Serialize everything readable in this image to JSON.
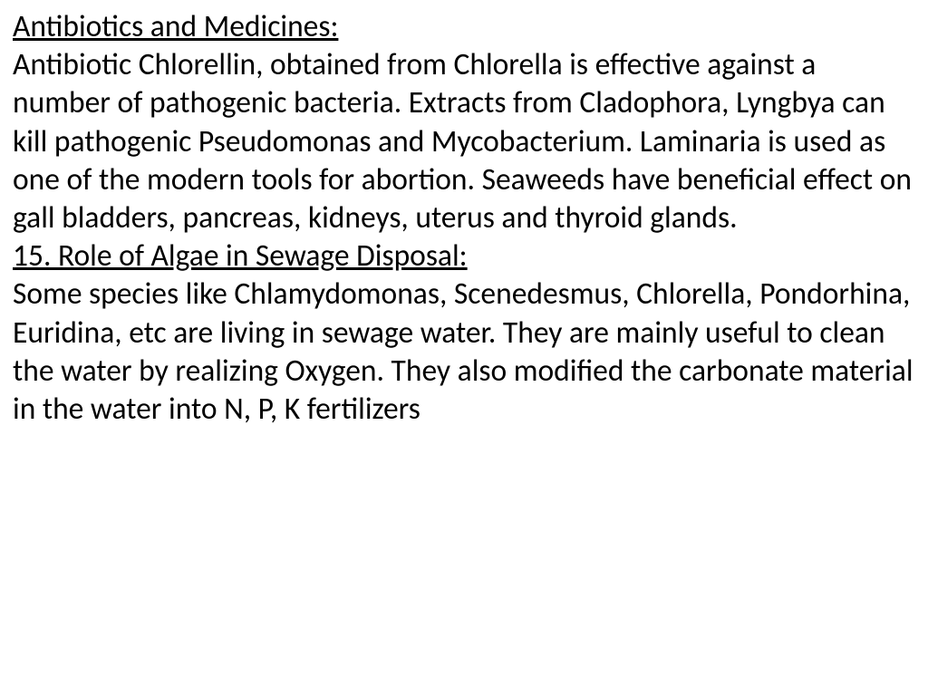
{
  "section1": {
    "heading": " Antibiotics and Medicines:",
    "body": "Antibiotic Chlorellin, obtained from Chlorella is effective against a number of pathogenic bacteria. Extracts from Cladophora, Lyngbya can kill pathogenic Pseudomonas and Mycobacterium. Laminaria is used as one of the modern tools for abortion. Seaweeds have beneficial effect on gall bladders, pancreas, kidneys, uterus and thyroid glands."
  },
  "section2": {
    "heading": "15. Role of Algae in Sewage Disposal:",
    "body": "Some species like Chlamydomonas, Scenedesmus, Chlorella, Pondorhina, Euridina, etc are living in sewage water. They are mainly useful to clean the water by realizing Oxygen. They also modified the carbonate material in the water into N, P, K fertilizers"
  },
  "style": {
    "font_family": "Calibri",
    "font_size_pt": 28,
    "text_color": "#000000",
    "background_color": "#ffffff",
    "heading_decoration": "underline"
  }
}
